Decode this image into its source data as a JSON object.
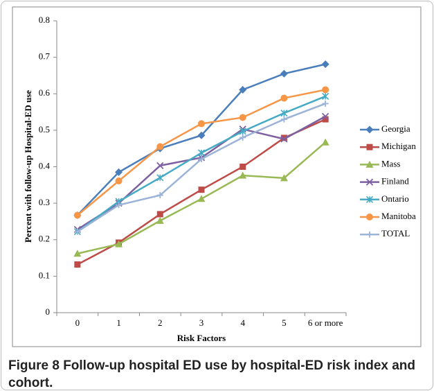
{
  "chart_data": {
    "type": "line",
    "x_label": "Risk Factors",
    "y_label": "Percent with follow-up Hospital-ED use",
    "categories": [
      "0",
      "1",
      "2",
      "3",
      "4",
      "5",
      "6 or more"
    ],
    "ylim": [
      0,
      0.8
    ],
    "yticks": [
      0,
      0.1,
      0.2,
      0.3,
      0.4,
      0.5,
      0.6,
      0.7,
      0.8
    ],
    "grid": false,
    "legend": "right",
    "series": [
      {
        "name": "Georgia",
        "color": "#4a7ebb",
        "marker": "diamond",
        "values": [
          0.267,
          0.385,
          0.45,
          0.486,
          0.611,
          0.655,
          0.681
        ]
      },
      {
        "name": "Michigan",
        "color": "#be4b48",
        "marker": "square",
        "values": [
          0.132,
          0.192,
          0.27,
          0.337,
          0.4,
          0.479,
          0.53
        ]
      },
      {
        "name": "Mass",
        "color": "#98b954",
        "marker": "triangle",
        "values": [
          0.162,
          0.188,
          0.252,
          0.312,
          0.376,
          0.369,
          0.467
        ]
      },
      {
        "name": "Finland",
        "color": "#7d60a0",
        "marker": "x",
        "values": [
          0.228,
          0.3,
          0.403,
          0.425,
          0.503,
          0.476,
          0.538
        ]
      },
      {
        "name": "Ontario",
        "color": "#46aac5",
        "marker": "star",
        "values": [
          0.222,
          0.305,
          0.37,
          0.438,
          0.497,
          0.547,
          0.593
        ]
      },
      {
        "name": "Manitoba",
        "color": "#f79646",
        "marker": "circle",
        "values": [
          0.267,
          0.361,
          0.455,
          0.518,
          0.535,
          0.588,
          0.611
        ]
      },
      {
        "name": "TOTAL",
        "color": "#9cb3d8",
        "marker": "plus",
        "values": [
          0.222,
          0.295,
          0.322,
          0.421,
          0.48,
          0.53,
          0.573
        ]
      }
    ],
    "figure_label": "Figure 8",
    "caption": "Follow-up hospital ED use by hospital-ED risk index and cohort."
  }
}
